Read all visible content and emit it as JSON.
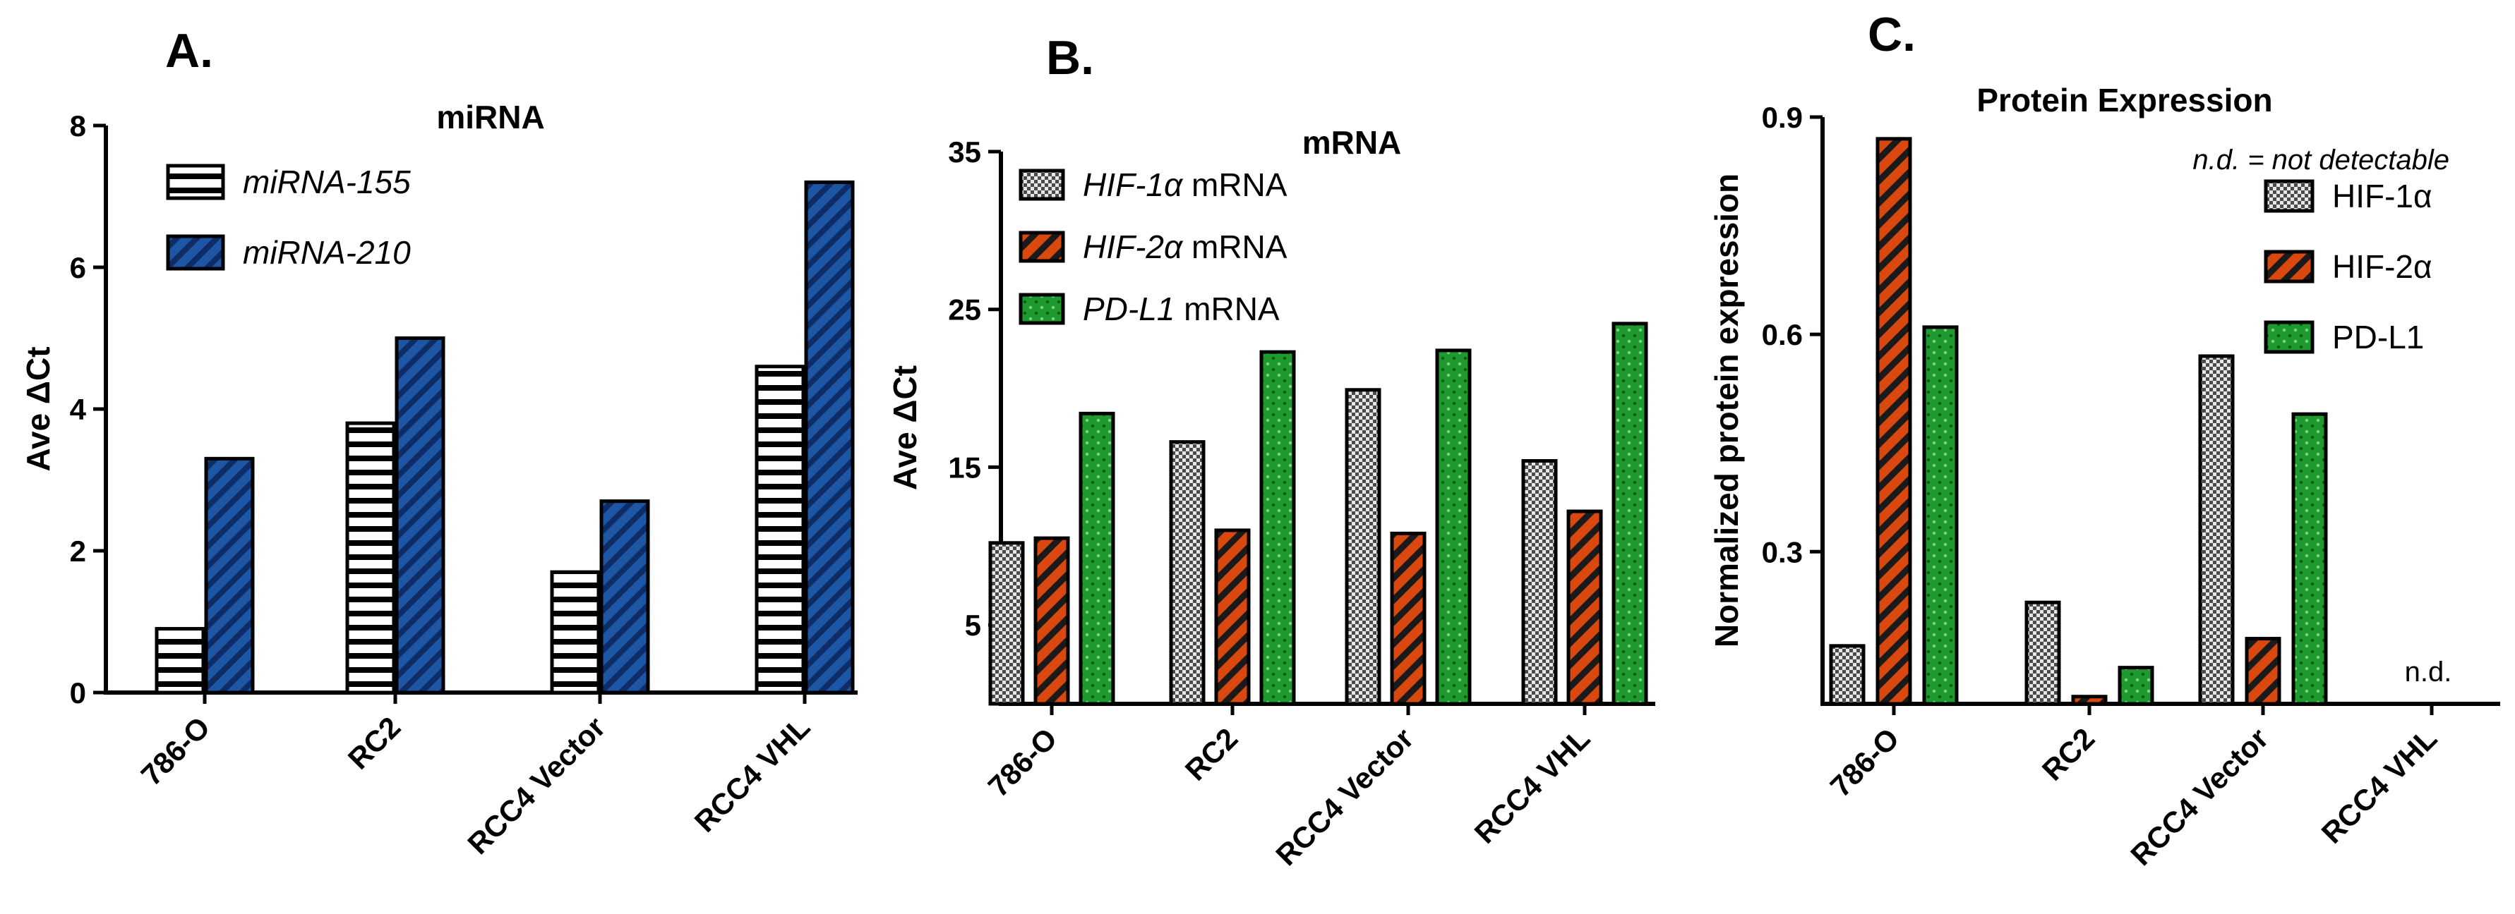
{
  "chart_data": [
    {
      "panel": "A.",
      "type": "bar",
      "title": "miRNA",
      "xlabel": "",
      "ylabel": "Ave ΔCt",
      "ylim": [
        0,
        8
      ],
      "yticks": [
        "0",
        "2",
        "4",
        "6",
        "8"
      ],
      "categories": [
        "786-O",
        "RC2",
        "RCC4 Vector",
        "RCC4 VHL"
      ],
      "series": [
        {
          "name": "miRNA-155",
          "values": [
            0.9,
            3.8,
            1.7,
            4.6
          ],
          "color": "#ffffff",
          "pattern": "hstripe"
        },
        {
          "name": "miRNA-210",
          "values": [
            3.3,
            5.0,
            2.7,
            7.2
          ],
          "color": "#1d56a5",
          "pattern": "diag"
        }
      ],
      "legend": "top-left"
    },
    {
      "panel": "B.",
      "type": "bar",
      "title": "mRNA",
      "xlabel": "",
      "ylabel": "Ave ΔCt",
      "ylim": [
        0,
        35
      ],
      "yticks": [
        "5",
        "15",
        "25",
        "35"
      ],
      "categories": [
        "786-O",
        "RC2",
        "RCC4 Vector",
        "RCC4 VHL"
      ],
      "series": [
        {
          "name": "HIF-1α",
          "name_suffix": " mRNA",
          "values": [
            10.2,
            16.6,
            19.9,
            15.4
          ],
          "color": "#d8d8d8",
          "pattern": "dots"
        },
        {
          "name": "HIF-2α",
          "name_suffix": " mRNA",
          "values": [
            10.5,
            11.0,
            10.8,
            12.2
          ],
          "color": "#d9480f",
          "pattern": "diag"
        },
        {
          "name": "PD-L1",
          "name_suffix": " mRNA",
          "values": [
            18.4,
            22.3,
            22.4,
            24.1
          ],
          "color": "#1e9a2e",
          "pattern": "dots"
        }
      ],
      "legend": "top-left"
    },
    {
      "panel": "C.",
      "type": "bar",
      "title": "Protein Expression",
      "xlabel": "",
      "ylabel": "Normalized protein expression",
      "ylim": [
        0.09,
        0.9
      ],
      "yticks": [
        "0.3",
        "0.6",
        "0.9"
      ],
      "categories": [
        "786-O",
        "RC2",
        "RCC4 Vector",
        "RCC4 VHL"
      ],
      "series": [
        {
          "name": "HIF-1α",
          "values": [
            0.17,
            0.23,
            0.57,
            null
          ],
          "color": "#d8d8d8",
          "pattern": "dots"
        },
        {
          "name": "HIF-2α",
          "values": [
            0.87,
            0.1,
            0.18,
            null
          ],
          "color": "#d9480f",
          "pattern": "diag"
        },
        {
          "name": "PD-L1",
          "values": [
            0.61,
            0.14,
            0.49,
            null
          ],
          "color": "#1e9a2e",
          "pattern": "dots"
        }
      ],
      "note": "n.d. = not detectable",
      "missing_label": "n.d.",
      "legend": "top-right"
    }
  ]
}
